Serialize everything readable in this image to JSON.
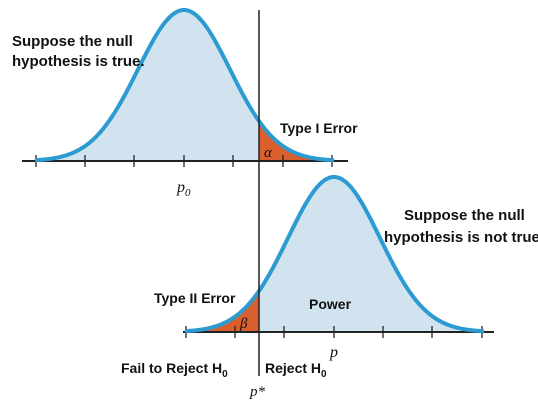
{
  "top_note": {
    "line1": "Suppose the null",
    "line2": "hypothesis is true."
  },
  "bottom_note": {
    "line1": "Suppose the null",
    "line2": "hypothesis is not true."
  },
  "type1_label": "Type I Error",
  "type2_label": "Type II Error",
  "power_label": "Power",
  "alpha_symbol": "α",
  "beta_symbol": "β",
  "p0_base": "p",
  "p0_sub": "0",
  "p_label": "p",
  "p_star": "p*",
  "fail_label_base": "Fail to Reject H",
  "reject_label_base": "Reject H",
  "h_sub": "0",
  "colors": {
    "curve": "#2b9bd1",
    "fill": "#d2e3f0",
    "error_fill": "#d95f2e",
    "axis": "#222222"
  }
}
